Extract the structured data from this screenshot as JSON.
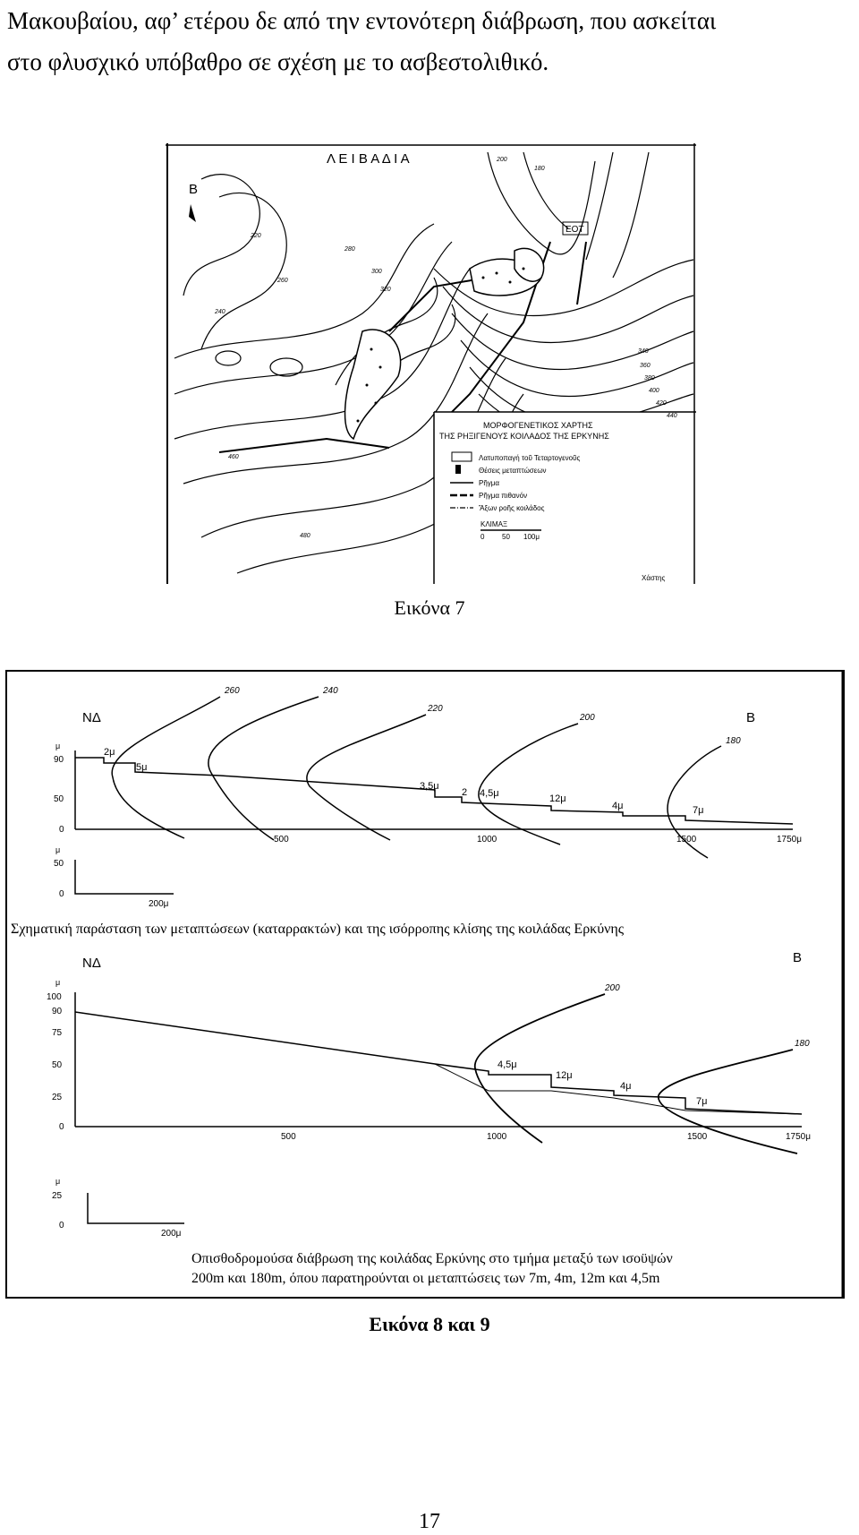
{
  "paragraph": {
    "line1": "Μακουβαίου, αφ’ ετέρου δε από την εντονότερη διάβρωση, που ασκείται",
    "line2": "στο φλυσχικό υπόβαθρο σε σχέση με το ασβεστολιθικό."
  },
  "figure7": {
    "caption": "Εικόνα 7",
    "top_label": "Λ Ε Ι Β Α Δ Ι Α",
    "north": "Β",
    "ekt": "ΕΟΤ",
    "legend_title_1": "ΜΟΡΦΟΓΕΝΕΤΙΚΟΣ ΧΑΡΤΗΣ",
    "legend_title_2": "ΤΗΣ ΡΗΞΙΓΕΝΟΥΣ ΚΟΙΛΑΔΟΣ ΤΗΣ ΕΡΚΥΝΗΣ",
    "legend_items": [
      "Λατυποπαγή τοῦ Τεταρτογενοῦς",
      "Θέσεις μεταπτώσεων",
      "Ρῆγμα",
      "Ρῆγμα πιθανόν",
      "Ἄξων ροῆς κοιλάδος"
    ],
    "scale_title": "ΚΛΙΜΑΞ",
    "scale_values": [
      "0",
      "50",
      "100μ"
    ],
    "author": "Χάστης",
    "contours": [
      "180",
      "200",
      "220",
      "240",
      "260",
      "280",
      "300",
      "320",
      "340",
      "360",
      "380",
      "400",
      "420",
      "440",
      "460",
      "480"
    ]
  },
  "figure8": {
    "sw": "ΝΔ",
    "north": "Β",
    "y_unit": "μ",
    "y_ticks": [
      "90",
      "50",
      "0"
    ],
    "x_ticks": [
      "500",
      "1000",
      "1500",
      "1750μ"
    ],
    "step_labels": [
      "2μ",
      "5μ",
      "3,5μ",
      "2",
      "4,5μ",
      "12μ",
      "4μ",
      "7μ"
    ],
    "contour_labels": [
      "260",
      "240",
      "220",
      "200",
      "180"
    ],
    "scale_unit": "μ",
    "scale_ticks": [
      "50",
      "0"
    ],
    "scale_len": "200μ",
    "caption": "Σχηματική παράσταση των μεταπτώσεων (καταρρακτών) και της ισόρροπης κλίσης της κοιλάδας Ερκύνης"
  },
  "figure9": {
    "sw": "ΝΔ",
    "north": "Β",
    "y_unit": "μ",
    "y_ticks": [
      "100",
      "90",
      "75",
      "50",
      "25",
      "0"
    ],
    "x_ticks": [
      "500",
      "1000",
      "1500",
      "1750μ"
    ],
    "step_labels": [
      "4,5μ",
      "12μ",
      "4μ",
      "7μ"
    ],
    "contour_labels": [
      "200",
      "180"
    ],
    "scale_unit": "μ",
    "scale_ticks": [
      "25",
      "0"
    ],
    "scale_len": "200μ",
    "caption_1": "Οπισθοδρομούσα διάβρωση της κοιλάδας Ερκύνης στο τμήμα μεταξύ των ισοϋψών",
    "caption_2": "200m και 180m, όπου παρατηρούνται οι μεταπτώσεις των 7m, 4m, 12m και 4,5m"
  },
  "caption_89": "Εικόνα 8 και 9",
  "page_number": "17"
}
